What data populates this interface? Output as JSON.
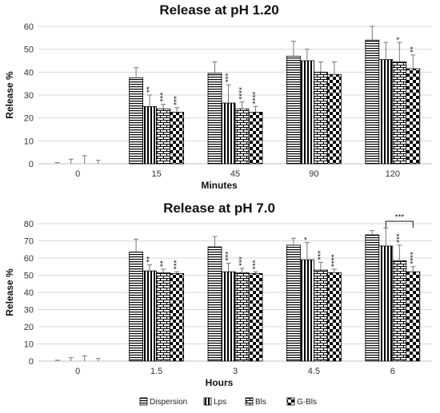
{
  "colors": {
    "bar_stroke": "#000000",
    "error": "#777777",
    "grid": "#d9d9d9"
  },
  "legend": {
    "placement": "bottom",
    "items": [
      {
        "label": "Dispersion",
        "pattern": "hstripes"
      },
      {
        "label": "Lps",
        "pattern": "vstripes"
      },
      {
        "label": "Bls",
        "pattern": "bricks"
      },
      {
        "label": "G-Bls",
        "pattern": "checker"
      }
    ]
  },
  "chart_data": [
    {
      "type": "bar",
      "title": "Release at pH 1.20",
      "xlabel": "Minutes",
      "ylabel": "Release %",
      "ylim": [
        0,
        60
      ],
      "yticks": [
        0,
        10,
        20,
        30,
        40,
        50,
        60
      ],
      "grid": true,
      "categories": [
        "0",
        "15",
        "45",
        "90",
        "120"
      ],
      "series": [
        {
          "name": "Dispersion",
          "values": [
            0,
            37.5,
            39.5,
            47,
            54
          ],
          "errors": [
            0.5,
            4.5,
            5,
            6.5,
            6
          ]
        },
        {
          "name": "Lps",
          "values": [
            0,
            25,
            26.5,
            45,
            45.5
          ],
          "errors": [
            2,
            5,
            8,
            5,
            7.5
          ]
        },
        {
          "name": "Bls",
          "values": [
            0,
            24,
            24,
            40,
            44.5
          ],
          "errors": [
            3.5,
            2,
            3,
            4.5,
            8.5
          ]
        },
        {
          "name": "G-Bls",
          "values": [
            0,
            22.5,
            22.5,
            39,
            41.5
          ],
          "errors": [
            1.5,
            2,
            2.5,
            5.5,
            6
          ]
        }
      ],
      "significance": [
        [
          [],
          [],
          [],
          []
        ],
        [
          [],
          [
            "**"
          ],
          [
            "***"
          ],
          [
            "***"
          ]
        ],
        [
          [],
          [
            "***"
          ],
          [
            "****"
          ],
          [
            "****"
          ]
        ],
        [
          [],
          [],
          [],
          []
        ],
        [
          [],
          [],
          [
            "*"
          ],
          [
            "**"
          ]
        ]
      ]
    },
    {
      "type": "bar",
      "title": "Release at pH 7.0",
      "xlabel": "Hours",
      "ylabel": "Release %",
      "ylim": [
        0,
        80
      ],
      "yticks": [
        0,
        10,
        20,
        30,
        40,
        50,
        60,
        70,
        80
      ],
      "grid": true,
      "categories": [
        "0",
        "1.5",
        "3",
        "4.5",
        "6"
      ],
      "series": [
        {
          "name": "Dispersion",
          "values": [
            0,
            63.5,
            66.5,
            67.5,
            73.5
          ],
          "errors": [
            0.5,
            7.5,
            6,
            4,
            2.5
          ]
        },
        {
          "name": "Lps",
          "values": [
            0,
            52.5,
            52,
            59,
            67
          ],
          "errors": [
            2,
            3.5,
            5,
            10,
            10.5
          ]
        },
        {
          "name": "Bls",
          "values": [
            0,
            51.5,
            51.5,
            53,
            58.5
          ],
          "errors": [
            3,
            2,
            2.5,
            4.5,
            9
          ]
        },
        {
          "name": "G-Bls",
          "values": [
            0,
            51,
            51,
            51.5,
            52
          ],
          "errors": [
            1.5,
            1,
            1,
            2,
            3
          ]
        }
      ],
      "significance": [
        [
          [],
          [],
          [],
          []
        ],
        [
          [],
          [
            "**"
          ],
          [
            "**"
          ],
          [
            "***"
          ]
        ],
        [
          [],
          [
            "***"
          ],
          [
            "***"
          ],
          [
            "***"
          ]
        ],
        [
          [],
          [
            "*"
          ],
          [
            "***"
          ],
          [
            "****"
          ]
        ],
        [
          [],
          [],
          [
            "***"
          ],
          [
            "****"
          ]
        ]
      ],
      "bracket": {
        "category": "6",
        "from_series": "Lps",
        "to_series": "G-Bls",
        "label": "***"
      }
    }
  ]
}
